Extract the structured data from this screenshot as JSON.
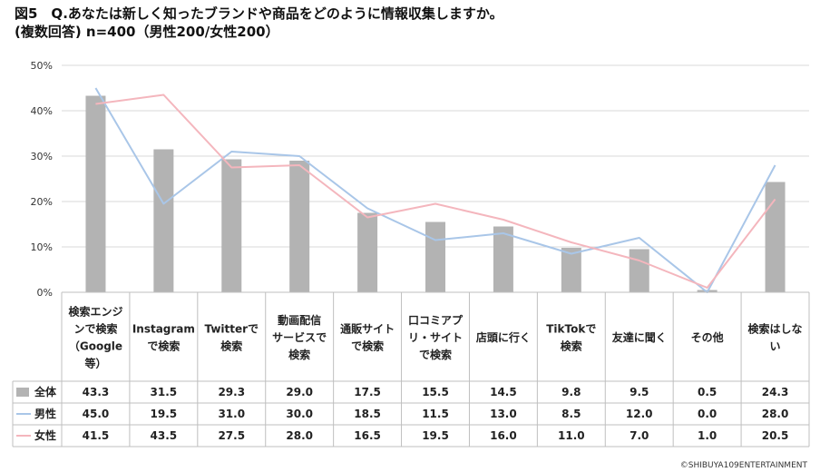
{
  "title_line1": "図5　Q.あなたは新しく知ったブランドや商品をどのように情報収集しますか。",
  "title_line2": "(複数回答) n=400（男性200/女性200）",
  "copyright": "©SHIBUYA109ENTERTAINMENT",
  "chart_data": {
    "type": "bar",
    "categories": [
      [
        "検索エンジ",
        "ンで検索",
        "（Google",
        "等）"
      ],
      [
        "Instagram",
        "で検索"
      ],
      [
        "Twitterで",
        "検索"
      ],
      [
        "動画配信",
        "サービスで",
        "検索"
      ],
      [
        "通販サイト",
        "で検索"
      ],
      [
        "口コミアプ",
        "リ・サイト",
        "で検索"
      ],
      [
        "店頭に行く"
      ],
      [
        "TikTokで",
        "検索"
      ],
      [
        "友達に聞く"
      ],
      [
        "その他"
      ],
      [
        "検索はしな",
        "い"
      ]
    ],
    "ylim": [
      0,
      50
    ],
    "yticks": [
      "0%",
      "10%",
      "20%",
      "30%",
      "40%",
      "50%"
    ],
    "grid": true,
    "series": [
      {
        "name": "全体",
        "kind": "bar",
        "color": "#b3b3b3",
        "values": [
          43.3,
          31.5,
          29.3,
          29.0,
          17.5,
          15.5,
          14.5,
          9.8,
          9.5,
          0.5,
          24.3
        ]
      },
      {
        "name": "男性",
        "kind": "line",
        "color": "#a9c6e8",
        "values": [
          45.0,
          19.5,
          31.0,
          30.0,
          18.5,
          11.5,
          13.0,
          8.5,
          12.0,
          0.0,
          28.0
        ]
      },
      {
        "name": "女性",
        "kind": "line",
        "color": "#f4b6bd",
        "values": [
          41.5,
          43.5,
          27.5,
          28.0,
          16.5,
          19.5,
          16.0,
          11.0,
          7.0,
          1.0,
          20.5
        ]
      }
    ],
    "table_values": [
      [
        "43.3",
        "31.5",
        "29.3",
        "29.0",
        "17.5",
        "15.5",
        "14.5",
        "9.8",
        "9.5",
        "0.5",
        "24.3"
      ],
      [
        "45.0",
        "19.5",
        "31.0",
        "30.0",
        "18.5",
        "11.5",
        "13.0",
        "8.5",
        "12.0",
        "0.0",
        "28.0"
      ],
      [
        "41.5",
        "43.5",
        "27.5",
        "28.0",
        "16.5",
        "19.5",
        "16.0",
        "11.0",
        "7.0",
        "1.0",
        "20.5"
      ]
    ]
  }
}
